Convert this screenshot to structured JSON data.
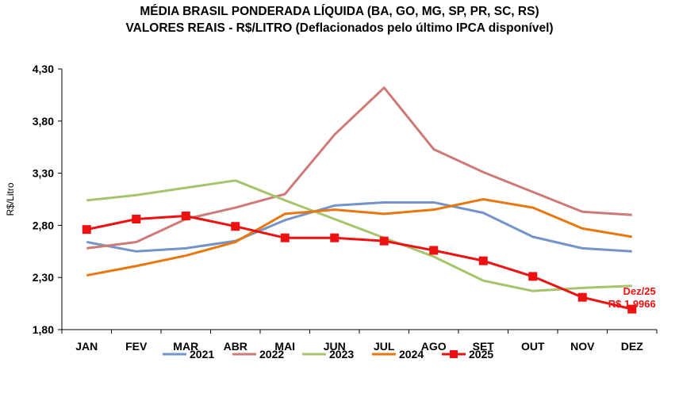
{
  "chart_data": {
    "type": "line",
    "title": "MÉDIA BRASIL PONDERADA LÍQUIDA (BA, GO, MG, SP, PR, SC, RS)",
    "subtitle": "VALORES REAIS - R$/LITRO (Deflacionados pelo último IPCA disponível)",
    "xlabel": "",
    "ylabel": "R$/Litro",
    "ylim": [
      1.8,
      4.3
    ],
    "yticks": [
      "1,80",
      "2,30",
      "2,80",
      "3,30",
      "3,80",
      "4,30"
    ],
    "categories": [
      "JAN",
      "FEV",
      "MAR",
      "ABR",
      "MAI",
      "JUN",
      "JUL",
      "AGO",
      "SET",
      "OUT",
      "NOV",
      "DEZ"
    ],
    "grid": false,
    "legend": "bottom",
    "series": [
      {
        "name": "2021",
        "color": "#7394C9",
        "marker": "none",
        "values": [
          2.64,
          2.55,
          2.58,
          2.65,
          2.85,
          2.99,
          3.02,
          3.02,
          2.92,
          2.69,
          2.58,
          2.55
        ]
      },
      {
        "name": "2022",
        "color": "#CD7A78",
        "marker": "none",
        "values": [
          2.58,
          2.64,
          2.86,
          2.97,
          3.1,
          3.67,
          4.12,
          3.53,
          3.31,
          3.12,
          2.93,
          2.9
        ]
      },
      {
        "name": "2023",
        "color": "#A5C46B",
        "marker": "none",
        "values": [
          3.04,
          3.09,
          3.16,
          3.23,
          3.04,
          2.86,
          2.68,
          2.5,
          2.27,
          2.17,
          2.2,
          2.22
        ]
      },
      {
        "name": "2024",
        "color": "#E9770E",
        "marker": "none",
        "values": [
          2.32,
          2.41,
          2.51,
          2.64,
          2.91,
          2.95,
          2.91,
          2.95,
          3.05,
          2.97,
          2.77,
          2.69
        ]
      },
      {
        "name": "2025",
        "color": "#EE1111",
        "marker": "square",
        "values": [
          2.76,
          2.86,
          2.89,
          2.79,
          2.68,
          2.68,
          2.65,
          2.56,
          2.46,
          2.31,
          2.11,
          1.9966
        ]
      }
    ],
    "annotations": [
      {
        "text": "Dez/25",
        "color": "#EE1111"
      },
      {
        "text": "R$ 1,9966",
        "color": "#EE1111"
      }
    ]
  }
}
